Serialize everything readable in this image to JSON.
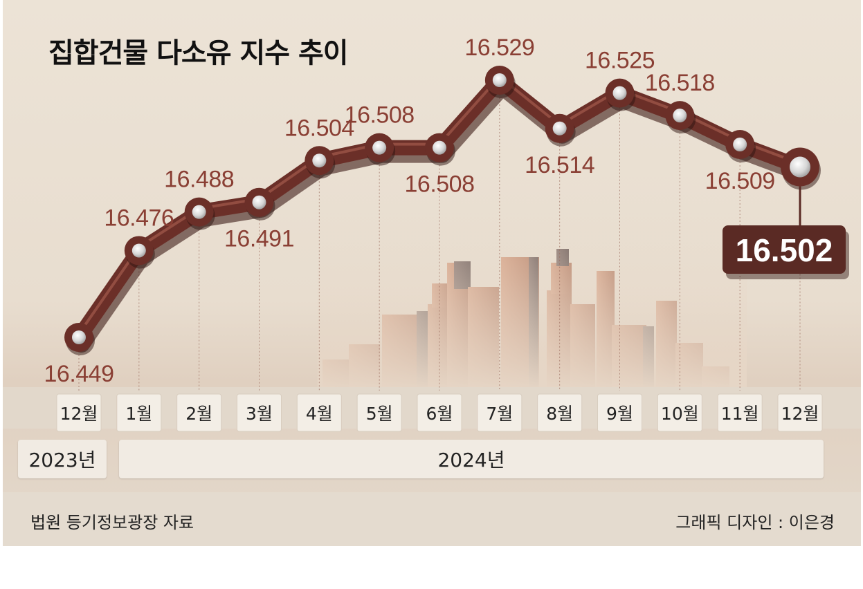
{
  "header": {
    "title": "집합건물 다소유 지수 추이"
  },
  "years": {
    "prev": "2023년",
    "curr": "2024년"
  },
  "footer": {
    "source": "법원 등기정보광장 자료",
    "credit": "그래픽 디자인 : 이은경"
  },
  "colors": {
    "line": "#6b2f28",
    "label": "#8a3f34",
    "callout_bg": "#5a2a24",
    "callout_text": "#ffffff"
  },
  "chart_data": {
    "type": "line",
    "title": "집합건물 다소유 지수 추이",
    "categories": [
      "12월",
      "1월",
      "2월",
      "3월",
      "4월",
      "5월",
      "6월",
      "7월",
      "8월",
      "9월",
      "10월",
      "11월",
      "12월"
    ],
    "values": [
      16.449,
      16.476,
      16.488,
      16.491,
      16.504,
      16.508,
      16.508,
      16.529,
      16.514,
      16.525,
      16.518,
      16.509,
      16.502
    ],
    "value_labels": [
      "16.449",
      "16.476",
      "16.488",
      "16.491",
      "16.504",
      "16.508",
      "16.508",
      "16.529",
      "16.514",
      "16.525",
      "16.518",
      "16.509",
      "16.502"
    ],
    "highlight_last": true,
    "xlabel": "",
    "ylabel": "",
    "ylim": [
      16.44,
      16.535
    ],
    "grid": false,
    "legend": "none"
  }
}
